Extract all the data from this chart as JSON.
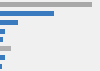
{
  "values": [
    85,
    50,
    17,
    5,
    3,
    10,
    5,
    2
  ],
  "bar_colors": [
    "#a8a8a8",
    "#3a7abf",
    "#3a7abf",
    "#3a7abf",
    "#3a7abf",
    "#b0b0b0",
    "#3a7abf",
    "#3a7abf"
  ],
  "background_color": "#f0f0f0",
  "xlim": [
    0,
    92
  ],
  "bar_height": 0.55,
  "figsize": [
    1.0,
    0.71
  ],
  "dpi": 100
}
